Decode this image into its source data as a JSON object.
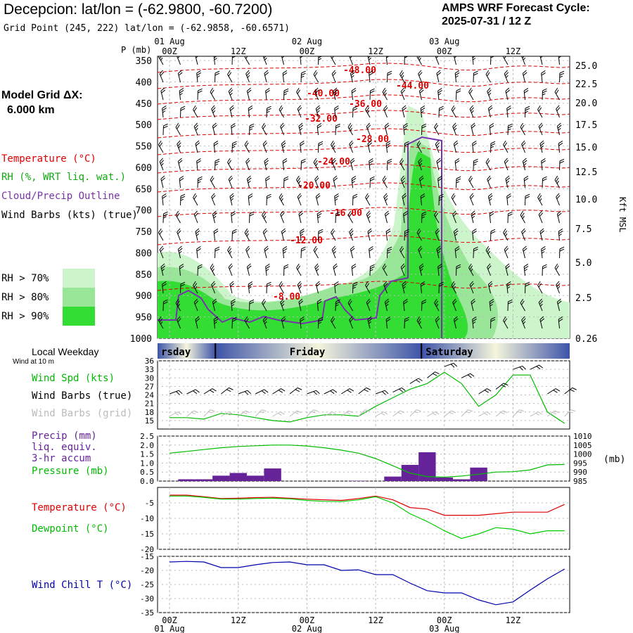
{
  "header": {
    "station_title": "Decepcion:  lat/lon = (-62.9800, -60.7200)",
    "grid_point": "Grid Point (245, 222) lat/lon = (-62.9858, -60.6571)",
    "model_line1": "AMPS WRF Forecast Cycle:",
    "model_line2": "2025-07-31 / 12  Z"
  },
  "sidebar": {
    "grid_dx_label": "Model Grid ΔX:",
    "grid_dx_value": "6.000 km",
    "legend_temperature": "Temperature (°C)",
    "legend_rh": "RH (%, WRT liq. wat.)",
    "legend_cloud": "Cloud/Precip Outline",
    "legend_wind": "Wind Barbs (kts) (true)",
    "rh_levels": [
      "RH > 70%",
      "RH > 80%",
      "RH > 90%"
    ],
    "local_weekday": "Local Weekday",
    "wind_at_10m": "Wind at 10 m"
  },
  "colors": {
    "temperature": "#dd0000",
    "rh70": "#ccf5cc",
    "rh80": "#99e699",
    "rh90": "#33dd33",
    "cloud": "#7733aa",
    "dewpoint": "#00cc00",
    "windchill": "#0000aa",
    "precip": "#662299",
    "grid": "#bbbbbb"
  },
  "chart_data": [
    {
      "type": "area",
      "name": "vertical cross-section",
      "xlabel": "",
      "ylabel": "P (mb)",
      "y2label": "Kft MSL",
      "x_time_labels": [
        "00Z",
        "12Z",
        "00Z",
        "12Z",
        "00Z",
        "12Z"
      ],
      "x_date_labels": [
        "01 Aug",
        "02 Aug",
        "03 Aug"
      ],
      "y_ticks": [
        350,
        400,
        450,
        500,
        550,
        600,
        650,
        700,
        750,
        800,
        850,
        900,
        950,
        1000
      ],
      "ylim": [
        1000,
        340
      ],
      "y2_ticks": [
        "25.0",
        "22.5",
        "20.0",
        "17.5",
        "15.0",
        "12.5",
        "10.0",
        "7.5",
        "5.0",
        "2.5",
        "0.26"
      ],
      "isotherm_labels": [
        "-48.00",
        "-44.00",
        "-40.00",
        "-36.00",
        "-32.00",
        "-28.00",
        "-24.00",
        "-20.00",
        "-16.00",
        "-12.00",
        "-8.00"
      ],
      "weekdays": [
        "rsday",
        "Friday",
        "Saturday"
      ]
    },
    {
      "type": "line",
      "name": "wind panel",
      "legend": [
        "Wind Spd (kts)",
        "Wind Barbs (true)",
        "Wind Barbs (grid)"
      ],
      "y_ticks": [
        15,
        18,
        21,
        24,
        27,
        30,
        33,
        36
      ],
      "ylim": [
        12,
        36
      ],
      "x": [
        0,
        3,
        6,
        9,
        12,
        15,
        18,
        21,
        24,
        27,
        30,
        33,
        36,
        39,
        42,
        45,
        48,
        51,
        54,
        57,
        60,
        63,
        66,
        69
      ],
      "series": [
        {
          "name": "Wind Spd (kts)",
          "values": [
            16,
            16,
            15.5,
            17.5,
            17,
            16,
            15,
            14.5,
            16,
            17,
            17,
            16.5,
            20,
            23,
            26,
            28,
            32,
            28,
            20,
            24,
            31,
            31,
            18,
            14
          ]
        }
      ]
    },
    {
      "type": "bar",
      "name": "precip / pressure panel",
      "legend": [
        "Precip (mm)",
        "liq. equiv.",
        "3-hr accum",
        "Pressure (mb)"
      ],
      "y_ticks": [
        "0.0",
        "0.5",
        "1.0",
        "1.5",
        "2.0",
        "2.5"
      ],
      "ylim": [
        0,
        2.5
      ],
      "y2_ticks": [
        985,
        990,
        995,
        1000,
        1005,
        1010
      ],
      "y2label": "(mb)",
      "y2lim": [
        985,
        1010
      ],
      "x": [
        0,
        3,
        6,
        9,
        12,
        15,
        18,
        21,
        24,
        27,
        30,
        33,
        36,
        39,
        42,
        45,
        48,
        51,
        54,
        57,
        60,
        63,
        66,
        69
      ],
      "precip": [
        0,
        0.1,
        0.1,
        0.3,
        0.45,
        0.3,
        0.7,
        0,
        0,
        0,
        0,
        0.02,
        0,
        0.25,
        0.9,
        1.6,
        0.2,
        0.1,
        0.75,
        0,
        0,
        0,
        0,
        0
      ],
      "series": [
        {
          "name": "Pressure (mb)",
          "values": [
            1000.5,
            1001.5,
            1002.5,
            1003.5,
            1004.2,
            1004.6,
            1005,
            1005,
            1004.5,
            1003.5,
            1002.2,
            1000.5,
            997.5,
            993.5,
            989.5,
            987.5,
            987.2,
            987.8,
            988.8,
            990,
            990.2,
            991.2,
            994,
            994.2
          ]
        }
      ]
    },
    {
      "type": "line",
      "name": "temperature / dewpoint panel",
      "legend": [
        "Temperature (°C)",
        "Dewpoint (°C)"
      ],
      "y_ticks": [
        -5,
        -10,
        -15,
        -20
      ],
      "ylim": [
        -20,
        0
      ],
      "x": [
        0,
        3,
        6,
        9,
        12,
        15,
        18,
        21,
        24,
        27,
        30,
        33,
        36,
        39,
        42,
        45,
        48,
        51,
        54,
        57,
        60,
        63,
        66,
        69
      ],
      "series": [
        {
          "name": "Temperature (°C)",
          "values": [
            -2.5,
            -2.5,
            -3,
            -3.6,
            -3.5,
            -3.3,
            -3.2,
            -3.5,
            -3.8,
            -4,
            -4.2,
            -3.6,
            -2.8,
            -4,
            -6.5,
            -7,
            -9,
            -9,
            -9,
            -8.5,
            -8,
            -8,
            -8,
            -5.5
          ]
        },
        {
          "name": "Dewpoint (°C)",
          "values": [
            -2.8,
            -2.8,
            -3.2,
            -3.8,
            -3.8,
            -3.6,
            -3.5,
            -3.7,
            -4.2,
            -4.5,
            -4.6,
            -4,
            -3,
            -5,
            -8.5,
            -11,
            -14,
            -16.5,
            -15,
            -13,
            -13.5,
            -15,
            -14,
            -14
          ]
        }
      ]
    },
    {
      "type": "line",
      "name": "wind chill panel",
      "legend": [
        "Wind Chill T (°C)"
      ],
      "y_ticks": [
        -15,
        -20,
        -25,
        -30,
        -35
      ],
      "ylim": [
        -35,
        -15
      ],
      "x": [
        0,
        3,
        6,
        9,
        12,
        15,
        18,
        21,
        24,
        27,
        30,
        33,
        36,
        39,
        42,
        45,
        48,
        51,
        54,
        57,
        60,
        63,
        66,
        69
      ],
      "series": [
        {
          "name": "Wind Chill T (°C)",
          "values": [
            -17,
            -16.8,
            -17,
            -19,
            -19,
            -18,
            -17.2,
            -17,
            -18,
            -18,
            -20,
            -19.8,
            -21.5,
            -21.5,
            -24.5,
            -27.2,
            -28,
            -28,
            -30.5,
            -32.2,
            -31.2,
            -27,
            -23,
            -19.5
          ]
        }
      ]
    }
  ]
}
